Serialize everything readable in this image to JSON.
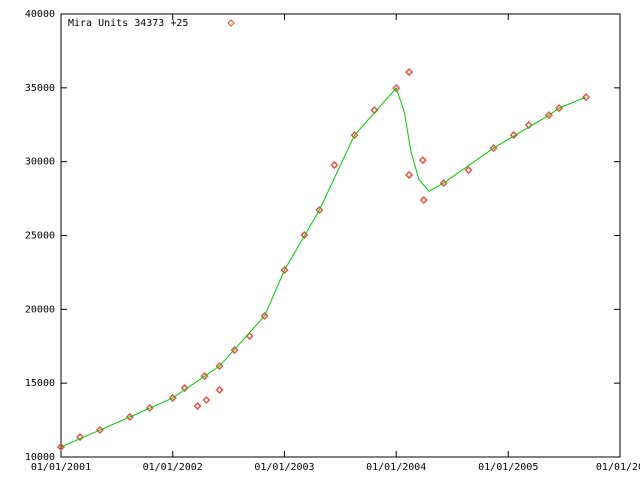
{
  "chart_data": {
    "type": "scatter",
    "xlim": [
      "2001-01-01",
      "2006-01-01"
    ],
    "xticks": [
      {
        "value": "2001-01-01",
        "label": "01/01/2001"
      },
      {
        "value": "2002-01-01",
        "label": "01/01/2002"
      },
      {
        "value": "2003-01-01",
        "label": "01/01/2003"
      },
      {
        "value": "2004-01-01",
        "label": "01/01/2004"
      },
      {
        "value": "2005-01-01",
        "label": "01/01/2005"
      },
      {
        "value": "2006-01-01",
        "label": "01/01/20"
      }
    ],
    "ylim": [
      10000,
      40000
    ],
    "yticks": [
      10000,
      15000,
      20000,
      25000,
      30000,
      35000,
      40000
    ],
    "legend": "top-left",
    "series": [
      {
        "name": "Mira Units 34373 +25",
        "color": "#e8544e",
        "mark": "points",
        "x": [
          "2001-01-01",
          "2001-03-04",
          "2001-05-08",
          "2001-08-14",
          "2001-10-18",
          "2002-01-01",
          "2002-02-09",
          "2002-03-23",
          "2002-04-15",
          "2002-04-21",
          "2002-06-03",
          "2002-06-03",
          "2002-07-22",
          "2002-09-09",
          "2002-10-28",
          "2003-01-01",
          "2003-03-07",
          "2003-04-25",
          "2003-06-13",
          "2003-08-18",
          "2003-10-22",
          "2004-01-01",
          "2004-02-12",
          "2004-02-12",
          "2004-03-28",
          "2004-03-31",
          "2004-06-04",
          "2004-08-24",
          "2004-11-14",
          "2005-01-19",
          "2005-03-09",
          "2005-05-14",
          "2005-06-16",
          "2005-09-12"
        ],
        "values": [
          10680,
          11350,
          11830,
          12710,
          13320,
          14000,
          14670,
          13450,
          15480,
          13860,
          16160,
          14540,
          17240,
          18190,
          19550,
          22660,
          25030,
          26720,
          29770,
          31800,
          33490,
          34980,
          36070,
          29100,
          30100,
          27400,
          28550,
          29430,
          30920,
          31800,
          32480,
          33150,
          33630,
          34370
        ]
      },
      {
        "color": "#00cc00",
        "mark": "line",
        "x": [
          "2001-01-01",
          "2001-08-14",
          "2002-01-01",
          "2002-06-03",
          "2002-10-28",
          "2003-01-01",
          "2003-04-25",
          "2003-08-18",
          "2004-01-01",
          "2004-01-27",
          "2004-02-18",
          "2004-03-15",
          "2004-04-17",
          "2004-06-04",
          "2004-11-14",
          "2005-05-14",
          "2005-06-16",
          "2005-09-12"
        ],
        "values": [
          10680,
          12710,
          14000,
          16160,
          19550,
          22660,
          26720,
          31800,
          34980,
          33400,
          30700,
          28800,
          28000,
          28550,
          30920,
          33150,
          33630,
          34370
        ]
      }
    ]
  }
}
